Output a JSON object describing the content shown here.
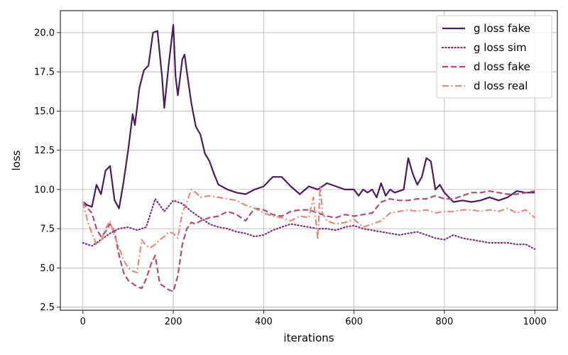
{
  "chart_data": {
    "type": "line",
    "title": "",
    "xlabel": "iterations",
    "ylabel": "loss",
    "xlim": [
      -50,
      1050
    ],
    "ylim": [
      2.3,
      21.4
    ],
    "xticks": [
      0,
      200,
      400,
      600,
      800,
      1000
    ],
    "yticks": [
      2.5,
      5.0,
      7.5,
      10.0,
      12.5,
      15.0,
      17.5,
      20.0
    ],
    "ytick_labels": [
      "2.5",
      "5.0",
      "7.5",
      "10.0",
      "12.5",
      "15.0",
      "17.5",
      "20.0"
    ],
    "grid": true,
    "legend_position": "top-right",
    "series": [
      {
        "name": "g loss fake",
        "color": "#4a1c5e",
        "dash": "solid",
        "points": [
          [
            0,
            9.2
          ],
          [
            10,
            9.0
          ],
          [
            20,
            8.9
          ],
          [
            30,
            10.3
          ],
          [
            40,
            9.7
          ],
          [
            50,
            11.2
          ],
          [
            60,
            11.5
          ],
          [
            70,
            9.3
          ],
          [
            80,
            8.8
          ],
          [
            90,
            10.5
          ],
          [
            100,
            12.5
          ],
          [
            110,
            14.8
          ],
          [
            115,
            14.1
          ],
          [
            125,
            16.5
          ],
          [
            135,
            17.6
          ],
          [
            145,
            17.9
          ],
          [
            155,
            20.0
          ],
          [
            165,
            20.1
          ],
          [
            175,
            17.2
          ],
          [
            180,
            15.2
          ],
          [
            190,
            18.0
          ],
          [
            200,
            20.5
          ],
          [
            205,
            17.2
          ],
          [
            210,
            16.0
          ],
          [
            220,
            18.3
          ],
          [
            225,
            18.6
          ],
          [
            230,
            17.5
          ],
          [
            240,
            15.5
          ],
          [
            250,
            14.0
          ],
          [
            260,
            13.5
          ],
          [
            270,
            12.3
          ],
          [
            280,
            11.8
          ],
          [
            290,
            11.0
          ],
          [
            300,
            10.3
          ],
          [
            320,
            10.0
          ],
          [
            340,
            9.8
          ],
          [
            360,
            9.7
          ],
          [
            380,
            10.0
          ],
          [
            400,
            10.2
          ],
          [
            420,
            10.8
          ],
          [
            440,
            10.8
          ],
          [
            460,
            10.2
          ],
          [
            480,
            9.7
          ],
          [
            500,
            10.2
          ],
          [
            520,
            10.0
          ],
          [
            540,
            10.4
          ],
          [
            560,
            10.2
          ],
          [
            580,
            10.0
          ],
          [
            600,
            10.0
          ],
          [
            610,
            9.6
          ],
          [
            620,
            10.0
          ],
          [
            630,
            9.8
          ],
          [
            640,
            10.0
          ],
          [
            650,
            9.5
          ],
          [
            660,
            10.4
          ],
          [
            670,
            9.6
          ],
          [
            680,
            10.0
          ],
          [
            690,
            9.8
          ],
          [
            700,
            9.9
          ],
          [
            710,
            10.0
          ],
          [
            720,
            12.0
          ],
          [
            730,
            11.0
          ],
          [
            740,
            10.3
          ],
          [
            750,
            10.8
          ],
          [
            760,
            12.0
          ],
          [
            770,
            11.8
          ],
          [
            780,
            10.0
          ],
          [
            790,
            10.3
          ],
          [
            800,
            9.8
          ],
          [
            810,
            9.5
          ],
          [
            820,
            9.2
          ],
          [
            840,
            9.3
          ],
          [
            860,
            9.2
          ],
          [
            880,
            9.3
          ],
          [
            900,
            9.5
          ],
          [
            920,
            9.3
          ],
          [
            940,
            9.5
          ],
          [
            960,
            9.9
          ],
          [
            980,
            9.8
          ],
          [
            1000,
            9.8
          ]
        ]
      },
      {
        "name": "g loss sim",
        "color": "#7d3375",
        "dash": "dotted",
        "points": [
          [
            0,
            6.6
          ],
          [
            20,
            6.4
          ],
          [
            40,
            6.8
          ],
          [
            60,
            7.2
          ],
          [
            80,
            7.5
          ],
          [
            100,
            7.6
          ],
          [
            120,
            7.4
          ],
          [
            140,
            7.6
          ],
          [
            160,
            9.4
          ],
          [
            180,
            8.6
          ],
          [
            200,
            9.3
          ],
          [
            220,
            9.1
          ],
          [
            240,
            8.6
          ],
          [
            260,
            8.2
          ],
          [
            280,
            7.8
          ],
          [
            300,
            7.6
          ],
          [
            320,
            7.5
          ],
          [
            340,
            7.3
          ],
          [
            360,
            7.2
          ],
          [
            380,
            7.0
          ],
          [
            400,
            7.1
          ],
          [
            420,
            7.4
          ],
          [
            440,
            7.6
          ],
          [
            460,
            7.8
          ],
          [
            480,
            7.7
          ],
          [
            500,
            7.6
          ],
          [
            520,
            7.5
          ],
          [
            540,
            7.5
          ],
          [
            560,
            7.4
          ],
          [
            580,
            7.6
          ],
          [
            600,
            7.7
          ],
          [
            620,
            7.5
          ],
          [
            640,
            7.4
          ],
          [
            660,
            7.3
          ],
          [
            680,
            7.2
          ],
          [
            700,
            7.1
          ],
          [
            720,
            7.2
          ],
          [
            740,
            7.3
          ],
          [
            760,
            7.1
          ],
          [
            780,
            6.9
          ],
          [
            800,
            6.8
          ],
          [
            820,
            7.1
          ],
          [
            840,
            6.9
          ],
          [
            860,
            6.8
          ],
          [
            880,
            6.7
          ],
          [
            900,
            6.6
          ],
          [
            920,
            6.6
          ],
          [
            940,
            6.6
          ],
          [
            960,
            6.5
          ],
          [
            980,
            6.5
          ],
          [
            1000,
            6.2
          ]
        ]
      },
      {
        "name": "d loss fake",
        "color": "#b04b77",
        "dash": "dashed",
        "points": [
          [
            0,
            9.2
          ],
          [
            10,
            8.8
          ],
          [
            20,
            8.5
          ],
          [
            30,
            7.5
          ],
          [
            40,
            7.0
          ],
          [
            50,
            7.3
          ],
          [
            60,
            7.8
          ],
          [
            70,
            7.3
          ],
          [
            80,
            5.8
          ],
          [
            90,
            4.7
          ],
          [
            100,
            4.2
          ],
          [
            110,
            4.0
          ],
          [
            120,
            3.8
          ],
          [
            130,
            3.7
          ],
          [
            140,
            4.3
          ],
          [
            150,
            5.2
          ],
          [
            160,
            5.8
          ],
          [
            170,
            4.0
          ],
          [
            180,
            3.8
          ],
          [
            190,
            3.6
          ],
          [
            200,
            3.5
          ],
          [
            210,
            4.5
          ],
          [
            220,
            6.5
          ],
          [
            230,
            7.5
          ],
          [
            240,
            7.9
          ],
          [
            250,
            7.8
          ],
          [
            260,
            8.0
          ],
          [
            280,
            8.2
          ],
          [
            300,
            8.3
          ],
          [
            320,
            8.6
          ],
          [
            340,
            8.4
          ],
          [
            360,
            8.0
          ],
          [
            380,
            8.8
          ],
          [
            400,
            8.7
          ],
          [
            420,
            8.4
          ],
          [
            440,
            8.3
          ],
          [
            460,
            8.6
          ],
          [
            480,
            8.7
          ],
          [
            500,
            8.7
          ],
          [
            520,
            8.5
          ],
          [
            540,
            8.3
          ],
          [
            560,
            8.2
          ],
          [
            580,
            8.4
          ],
          [
            600,
            8.3
          ],
          [
            620,
            8.4
          ],
          [
            640,
            8.5
          ],
          [
            660,
            9.2
          ],
          [
            680,
            9.4
          ],
          [
            700,
            9.3
          ],
          [
            720,
            9.3
          ],
          [
            740,
            9.4
          ],
          [
            760,
            9.4
          ],
          [
            780,
            9.6
          ],
          [
            800,
            9.4
          ],
          [
            820,
            9.4
          ],
          [
            840,
            9.6
          ],
          [
            860,
            9.8
          ],
          [
            880,
            9.8
          ],
          [
            900,
            9.9
          ],
          [
            920,
            9.8
          ],
          [
            940,
            9.7
          ],
          [
            960,
            9.7
          ],
          [
            980,
            9.8
          ],
          [
            1000,
            9.9
          ]
        ]
      },
      {
        "name": "d loss real",
        "color": "#e08c7a",
        "dash": "dashdot",
        "points": [
          [
            0,
            9.2
          ],
          [
            10,
            8.0
          ],
          [
            20,
            7.2
          ],
          [
            30,
            6.5
          ],
          [
            40,
            6.7
          ],
          [
            50,
            7.5
          ],
          [
            60,
            8.0
          ],
          [
            70,
            7.0
          ],
          [
            80,
            6.3
          ],
          [
            90,
            5.5
          ],
          [
            100,
            5.0
          ],
          [
            110,
            4.8
          ],
          [
            120,
            4.7
          ],
          [
            130,
            6.8
          ],
          [
            140,
            6.4
          ],
          [
            150,
            6.3
          ],
          [
            160,
            6.5
          ],
          [
            170,
            6.8
          ],
          [
            180,
            7.0
          ],
          [
            190,
            7.3
          ],
          [
            200,
            7.2
          ],
          [
            210,
            6.9
          ],
          [
            220,
            8.5
          ],
          [
            230,
            9.2
          ],
          [
            240,
            10.0
          ],
          [
            250,
            9.8
          ],
          [
            260,
            9.5
          ],
          [
            280,
            9.6
          ],
          [
            300,
            9.5
          ],
          [
            320,
            9.4
          ],
          [
            340,
            9.3
          ],
          [
            360,
            9.0
          ],
          [
            380,
            8.8
          ],
          [
            400,
            8.5
          ],
          [
            420,
            8.3
          ],
          [
            440,
            8.2
          ],
          [
            460,
            8.0
          ],
          [
            480,
            8.3
          ],
          [
            500,
            8.2
          ],
          [
            510,
            9.5
          ],
          [
            520,
            6.8
          ],
          [
            525,
            10.3
          ],
          [
            530,
            8.5
          ],
          [
            540,
            8.0
          ],
          [
            560,
            7.8
          ],
          [
            580,
            7.9
          ],
          [
            600,
            8.1
          ],
          [
            620,
            7.6
          ],
          [
            640,
            7.8
          ],
          [
            660,
            8.0
          ],
          [
            680,
            8.5
          ],
          [
            700,
            8.6
          ],
          [
            720,
            8.7
          ],
          [
            740,
            8.6
          ],
          [
            760,
            8.7
          ],
          [
            780,
            8.5
          ],
          [
            800,
            8.6
          ],
          [
            820,
            8.6
          ],
          [
            840,
            8.7
          ],
          [
            860,
            8.7
          ],
          [
            880,
            8.6
          ],
          [
            900,
            8.7
          ],
          [
            920,
            8.6
          ],
          [
            940,
            8.8
          ],
          [
            960,
            8.5
          ],
          [
            980,
            8.7
          ],
          [
            1000,
            8.2
          ]
        ]
      }
    ]
  }
}
